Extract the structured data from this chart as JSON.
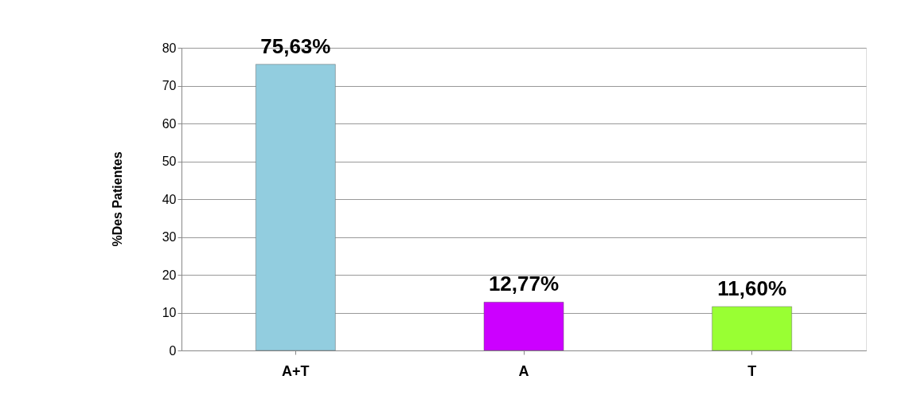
{
  "chart_data": {
    "type": "bar",
    "ylabel": "%Des Patientes",
    "categories": [
      "A+T",
      "A",
      "T"
    ],
    "values": [
      75.63,
      12.77,
      11.6
    ],
    "colors": [
      "#92cddf",
      "#cc00ff",
      "#99ff33"
    ],
    "value_labels": [
      "75,63%",
      "12,77%",
      "11,60%"
    ],
    "ylim": [
      0,
      80
    ],
    "yticks": [
      0,
      10,
      20,
      30,
      40,
      50,
      60,
      70,
      80
    ],
    "grid": "y"
  }
}
